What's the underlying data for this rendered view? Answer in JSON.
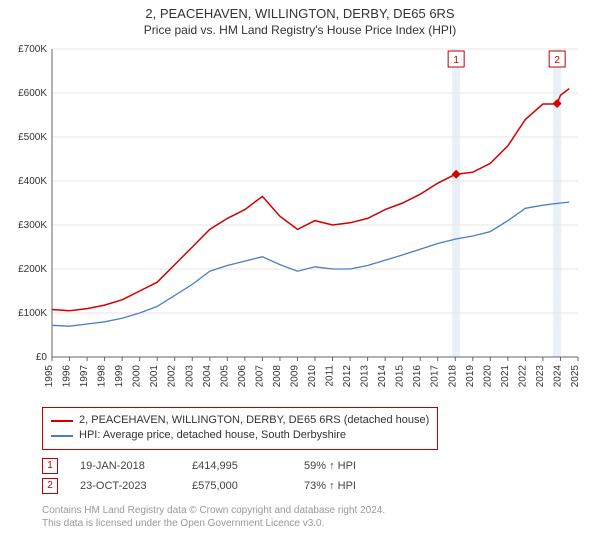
{
  "title": "2, PEACEHAVEN, WILLINGTON, DERBY, DE65 6RS",
  "subtitle": "Price paid vs. HM Land Registry's House Price Index (HPI)",
  "chart": {
    "type": "line",
    "background_color": "#ffffff",
    "plot_background_color": "#ffffff",
    "grid_color": "#e5e5e5",
    "axis_color": "#666666",
    "tick_font_size": 10,
    "x": {
      "min": 1995,
      "max": 2025,
      "ticks": [
        1995,
        1996,
        1997,
        1998,
        1999,
        2000,
        2001,
        2002,
        2003,
        2004,
        2005,
        2006,
        2007,
        2008,
        2009,
        2010,
        2011,
        2012,
        2013,
        2014,
        2015,
        2016,
        2017,
        2018,
        2019,
        2020,
        2021,
        2022,
        2023,
        2024,
        2025
      ],
      "tick_rotation": -90
    },
    "y": {
      "min": 0,
      "max": 700000,
      "ticks": [
        0,
        100000,
        200000,
        300000,
        400000,
        500000,
        600000,
        700000
      ],
      "tick_labels": [
        "£0",
        "£100K",
        "£200K",
        "£300K",
        "£400K",
        "£500K",
        "£600K",
        "£700K"
      ]
    },
    "series": [
      {
        "name": "2, PEACEHAVEN, WILLINGTON, DERBY, DE65 6RS (detached house)",
        "color": "#d40000",
        "line_width": 1.5,
        "data": [
          [
            1995,
            108000
          ],
          [
            1996,
            105000
          ],
          [
            1997,
            110000
          ],
          [
            1998,
            118000
          ],
          [
            1999,
            130000
          ],
          [
            2000,
            150000
          ],
          [
            2001,
            170000
          ],
          [
            2002,
            210000
          ],
          [
            2003,
            250000
          ],
          [
            2004,
            290000
          ],
          [
            2005,
            315000
          ],
          [
            2006,
            335000
          ],
          [
            2007,
            365000
          ],
          [
            2008,
            320000
          ],
          [
            2009,
            290000
          ],
          [
            2010,
            310000
          ],
          [
            2011,
            300000
          ],
          [
            2012,
            305000
          ],
          [
            2013,
            315000
          ],
          [
            2014,
            335000
          ],
          [
            2015,
            350000
          ],
          [
            2016,
            370000
          ],
          [
            2017,
            395000
          ],
          [
            2018,
            414995
          ],
          [
            2019,
            420000
          ],
          [
            2020,
            440000
          ],
          [
            2021,
            480000
          ],
          [
            2022,
            540000
          ],
          [
            2023,
            575000
          ],
          [
            2023.8,
            575000
          ],
          [
            2024,
            595000
          ],
          [
            2024.5,
            610000
          ]
        ]
      },
      {
        "name": "HPI: Average price, detached house, South Derbyshire",
        "color": "#4a7fc4",
        "line_width": 1.3,
        "data": [
          [
            1995,
            72000
          ],
          [
            1996,
            70000
          ],
          [
            1997,
            75000
          ],
          [
            1998,
            80000
          ],
          [
            1999,
            88000
          ],
          [
            2000,
            100000
          ],
          [
            2001,
            115000
          ],
          [
            2002,
            140000
          ],
          [
            2003,
            165000
          ],
          [
            2004,
            195000
          ],
          [
            2005,
            208000
          ],
          [
            2006,
            218000
          ],
          [
            2007,
            228000
          ],
          [
            2008,
            210000
          ],
          [
            2009,
            195000
          ],
          [
            2010,
            205000
          ],
          [
            2011,
            200000
          ],
          [
            2012,
            200000
          ],
          [
            2013,
            208000
          ],
          [
            2014,
            220000
          ],
          [
            2015,
            232000
          ],
          [
            2016,
            245000
          ],
          [
            2017,
            258000
          ],
          [
            2018,
            268000
          ],
          [
            2019,
            275000
          ],
          [
            2020,
            285000
          ],
          [
            2021,
            310000
          ],
          [
            2022,
            338000
          ],
          [
            2023,
            345000
          ],
          [
            2024,
            350000
          ],
          [
            2024.5,
            352000
          ]
        ]
      }
    ],
    "sale_markers": [
      {
        "id": "1",
        "year": 2018.05,
        "color": "#d40000",
        "box_color": "#c00000"
      },
      {
        "id": "2",
        "year": 2023.81,
        "color": "#d40000",
        "box_color": "#c00000"
      }
    ],
    "marker_band_color": "#d8e4f0",
    "marker_band_opacity": 0.55
  },
  "legend": {
    "border_color": "#c00000",
    "items": [
      {
        "color": "#d40000",
        "label": "2, PEACEHAVEN, WILLINGTON, DERBY, DE65 6RS (detached house)"
      },
      {
        "color": "#4a7fc4",
        "label": "HPI: Average price, detached house, South Derbyshire"
      }
    ]
  },
  "sales": [
    {
      "marker": "1",
      "date": "19-JAN-2018",
      "price": "£414,995",
      "vs_hpi": "59% ↑ HPI"
    },
    {
      "marker": "2",
      "date": "23-OCT-2023",
      "price": "£575,000",
      "vs_hpi": "73% ↑ HPI"
    }
  ],
  "footer": {
    "line1": "Contains HM Land Registry data © Crown copyright and database right 2024.",
    "line2": "This data is licensed under the Open Government Licence v3.0."
  }
}
